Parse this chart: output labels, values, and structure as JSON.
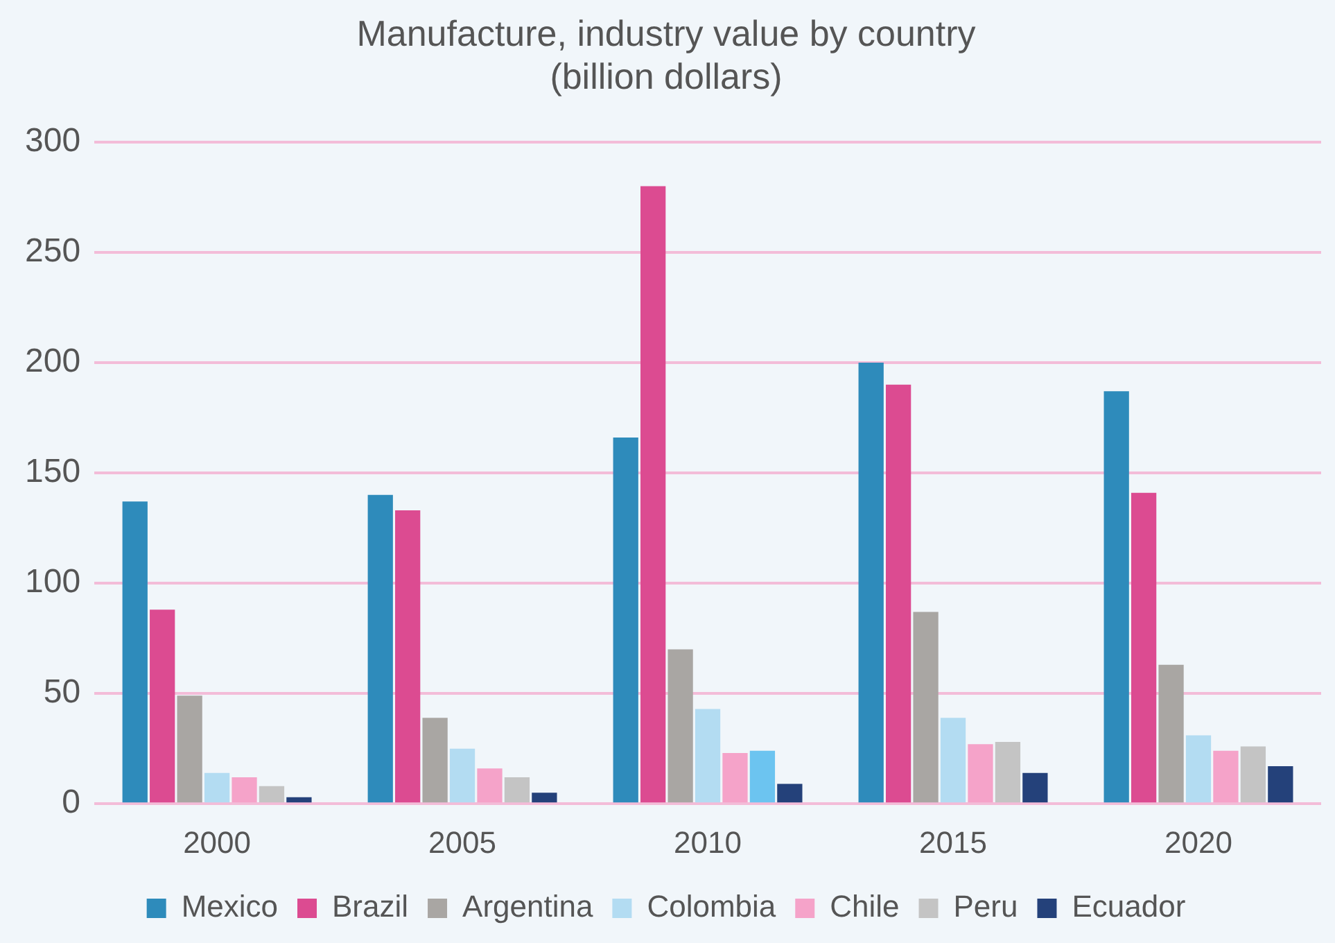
{
  "chart_data": {
    "type": "bar",
    "title": "Manufacture, industry value by country\n(billion dollars)",
    "categories": [
      "2000",
      "2005",
      "2010",
      "2015",
      "2020"
    ],
    "series": [
      {
        "name": "Mexico",
        "color": "#2e8bbb",
        "values": [
          137,
          140,
          166,
          200,
          187
        ]
      },
      {
        "name": "Brazil",
        "color": "#dc4b91",
        "values": [
          88,
          133,
          280,
          190,
          141
        ]
      },
      {
        "name": "Argentina",
        "color": "#a9a6a3",
        "values": [
          49,
          39,
          70,
          87,
          63
        ]
      },
      {
        "name": "Colombia",
        "color": "#b3dcf2",
        "values": [
          14,
          25,
          43,
          39,
          31
        ]
      },
      {
        "name": "Chile",
        "color": "#f5a3c9",
        "values": [
          12,
          16,
          23,
          27,
          24
        ]
      },
      {
        "name": "Peru",
        "color": "#c4c4c4",
        "colors": [
          "#c4c4c4",
          "#c4c4c4",
          "#6cc4f0",
          "#c4c4c4",
          "#c4c4c4"
        ],
        "values": [
          8,
          12,
          24,
          28,
          26
        ]
      },
      {
        "name": "Ecuador",
        "color": "#24417a",
        "values": [
          3,
          5,
          9,
          14,
          17
        ]
      }
    ],
    "ylim": [
      0,
      300
    ],
    "yticks": [
      0,
      50,
      100,
      150,
      200,
      250,
      300
    ],
    "grid": "y",
    "legend": "bottom"
  }
}
